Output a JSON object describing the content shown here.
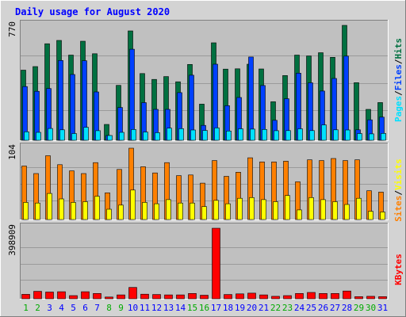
{
  "chart_data": {
    "type": "bar",
    "title": "Daily usage for August 2020",
    "days": [
      "1",
      "2",
      "3",
      "4",
      "5",
      "6",
      "7",
      "8",
      "9",
      "10",
      "11",
      "12",
      "13",
      "14",
      "15",
      "16",
      "17",
      "18",
      "19",
      "20",
      "21",
      "22",
      "23",
      "24",
      "25",
      "26",
      "27",
      "28",
      "29",
      "30",
      "31"
    ],
    "weekend_days": [
      1,
      2,
      8,
      9,
      15,
      16,
      22,
      23,
      29,
      30
    ],
    "colors": {
      "title": "#0000ff",
      "weekday_label": "#0000ff",
      "weekend_label": "#00aa00",
      "hits": "#007040",
      "files": "#0040ff",
      "pages": "#00e0ff",
      "visits": "#ff8000",
      "sites": "#ffff00",
      "kbytes": "#ff0000",
      "panel_bg": "#c0c0c0",
      "frame_bg": "#d3d3d3"
    },
    "panels": [
      {
        "id": "hits-files-pages",
        "y_max_label": "770",
        "y_max": 770,
        "legend": [
          {
            "text": "Pages",
            "color": "#00e0ff"
          },
          {
            "text": "/",
            "color": "#000000"
          },
          {
            "text": "Files",
            "color": "#0040ff"
          },
          {
            "text": "/",
            "color": "#000000"
          },
          {
            "text": "Hits",
            "color": "#007040"
          }
        ],
        "series": [
          {
            "name": "Hits",
            "color": "#007040",
            "values": [
              470,
              494,
              647,
              669,
              571,
              664,
              580,
              106,
              368,
              733,
              447,
              408,
              427,
              392,
              508,
              242,
              653,
              477,
              479,
              510,
              478,
              258,
              434,
              571,
              565,
              587,
              556,
              770,
              386,
              207,
              253
            ]
          },
          {
            "name": "Files",
            "color": "#0040ff",
            "values": [
              360,
              328,
              347,
              535,
              441,
              533,
              324,
              32,
              220,
              610,
              252,
              207,
              207,
              319,
              436,
              100,
              510,
              232,
              287,
              558,
              367,
              134,
              278,
              450,
              385,
              330,
              414,
              564,
              70,
              137,
              155
            ]
          },
          {
            "name": "Pages",
            "color": "#00e0ff",
            "values": [
              57,
              53,
              79,
              70,
              45,
              87,
              64,
              32,
              53,
              72,
              55,
              51,
              81,
              78,
              69,
              66,
              83,
              62,
              77,
              75,
              73,
              64,
              65,
              77,
              65,
              103,
              70,
              69,
              45,
              43,
              46
            ]
          }
        ]
      },
      {
        "id": "visits-sites",
        "y_max_label": "104",
        "y_max": 104,
        "legend": [
          {
            "text": "Sites",
            "color": "#ff8000"
          },
          {
            "text": "/",
            "color": "#000000"
          },
          {
            "text": "Visits",
            "color": "#ffff00"
          }
        ],
        "series": [
          {
            "name": "Visits",
            "color": "#ff8000",
            "values": [
              78,
              67,
              93,
              80,
              71,
              67,
              83,
              39,
              73,
              104,
              77,
              68,
              83,
              64,
              65,
              53,
              86,
              63,
              69,
              90,
              84,
              84,
              85,
              55,
              87,
              86,
              89,
              86,
              87,
              42,
              40
            ]
          },
          {
            "name": "Sites",
            "color": "#ffff00",
            "values": [
              25,
              24,
              38,
              30,
              25,
              26,
              34,
              15,
              21,
              43,
              25,
              23,
              29,
              24,
              24,
              19,
              28,
              23,
              31,
              32,
              29,
              26,
              35,
              14,
              32,
              29,
              26,
              22,
              31,
              12,
              11
            ]
          }
        ]
      },
      {
        "id": "kbytes",
        "y_max_label": "398909",
        "y_max": 398909,
        "legend": [
          {
            "text": "KBytes",
            "color": "#ff0000"
          }
        ],
        "series": [
          {
            "name": "KBytes",
            "color": "#ff0000",
            "values": [
              25000,
              42000,
              38000,
              40000,
              18000,
              40000,
              30000,
              10000,
              22000,
              64000,
              26000,
              24000,
              22000,
              22000,
              30000,
              20000,
              398909,
              24000,
              28000,
              32000,
              22000,
              14000,
              18000,
              30000,
              36000,
              30000,
              30000,
              44000,
              12000,
              14000,
              12000
            ]
          }
        ]
      }
    ]
  }
}
